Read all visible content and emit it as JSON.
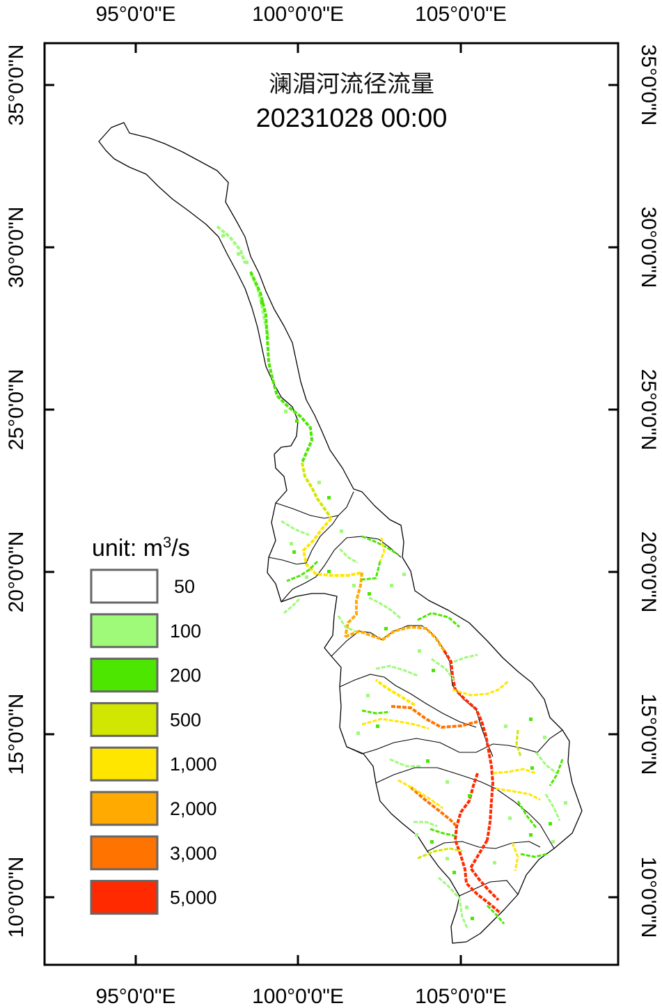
{
  "map": {
    "title": "澜湄河流径流量",
    "datetime": "20231028  00:00",
    "lon_ticks": [
      "95°0'0\"E",
      "100°0'0\"E",
      "105°0'0\"E"
    ],
    "lat_ticks": [
      "35°0'0\"N",
      "30°0'0\"N",
      "25°0'0\"N",
      "20°0'0\"N",
      "15°0'0\"N",
      "10°0'0\"N"
    ]
  },
  "legend": {
    "title_prefix": "unit: m",
    "title_sup": "3",
    "title_suffix": "/s",
    "classes": [
      {
        "label": "50",
        "color": "#ffffff"
      },
      {
        "label": "100",
        "color": "#9efa78"
      },
      {
        "label": "200",
        "color": "#4ce600"
      },
      {
        "label": "500",
        "color": "#d1e600"
      },
      {
        "label": "1,000",
        "color": "#ffe600"
      },
      {
        "label": "2,000",
        "color": "#ffaa00"
      },
      {
        "label": "3,000",
        "color": "#ff7300"
      },
      {
        "label": "5,000",
        "color": "#ff2a00"
      }
    ]
  }
}
